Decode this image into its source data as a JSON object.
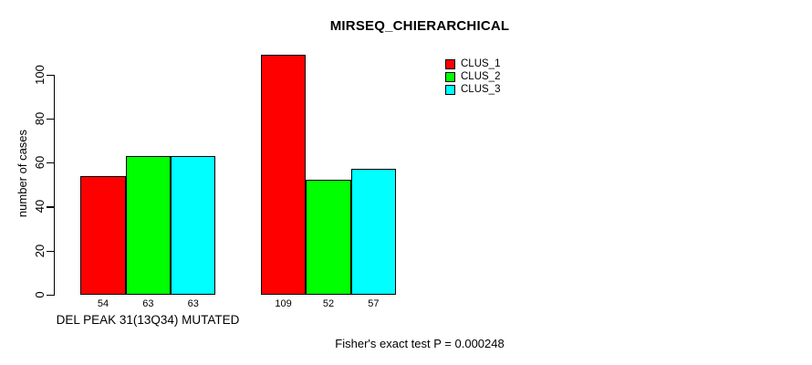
{
  "chart_data": {
    "type": "bar",
    "title": "MIRSEQ_CHIERARCHICAL",
    "ylabel": "number of cases",
    "xlabel": "DEL PEAK 31(13Q34) MUTATED",
    "annotation": "Fisher's exact test P = 0.000248",
    "ylim": [
      0,
      110
    ],
    "yticks": [
      0,
      20,
      40,
      60,
      80,
      100
    ],
    "grid": false,
    "legend_position": "top-right",
    "groups": [
      "DEL PEAK 31(13Q34) MUTATED",
      ""
    ],
    "series": [
      {
        "name": "CLUS_1",
        "color": "#ff0000",
        "values": [
          54,
          109
        ]
      },
      {
        "name": "CLUS_2",
        "color": "#00ff00",
        "values": [
          63,
          52
        ]
      },
      {
        "name": "CLUS_3",
        "color": "#00ffff",
        "values": [
          63,
          57
        ]
      }
    ],
    "bar_value_labels": [
      [
        "54",
        "63",
        "63"
      ],
      [
        "109",
        "52",
        "57"
      ]
    ],
    "colors": {
      "background": "#ffffff",
      "axis": "#000000",
      "text": "#000000"
    }
  }
}
